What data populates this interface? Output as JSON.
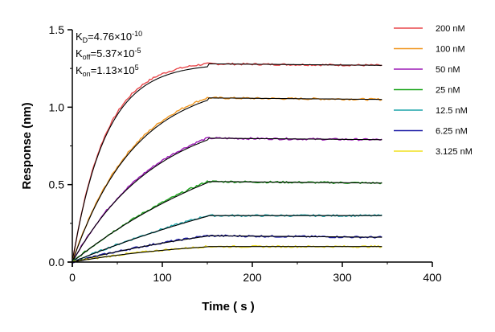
{
  "chart_data": {
    "type": "line",
    "xlabel": "Time ( s )",
    "ylabel": "Response (nm)",
    "xlim": [
      0,
      400
    ],
    "ylim": [
      0,
      1.5
    ],
    "x_ticks": [
      "0",
      "100",
      "200",
      "300",
      "400"
    ],
    "y_ticks": [
      "0.0",
      "0.5",
      "1.0",
      "1.5"
    ],
    "association_end_s": 150,
    "end_time_s": 345,
    "kinetics": {
      "KD": {
        "label": "K",
        "sub": "D",
        "value": "=4.76×10",
        "exp": "-10"
      },
      "Koff": {
        "label": "K",
        "sub": "off",
        "value": "=5.37×10",
        "exp": "-5"
      },
      "Kon": {
        "label": "K",
        "sub": "on",
        "value": "=1.13×10",
        "exp": "5"
      }
    },
    "series": [
      {
        "name": "200 nM",
        "color": "#e8474a",
        "plateau": 1.28,
        "end": 1.27,
        "tau": 37
      },
      {
        "name": "100 nM",
        "color": "#f0961e",
        "plateau": 1.06,
        "end": 1.05,
        "tau": 70
      },
      {
        "name": "50 nM",
        "color": "#9b19b5",
        "plateau": 0.8,
        "end": 0.79,
        "tau": 95
      },
      {
        "name": "25 nM",
        "color": "#1aa51a",
        "plateau": 0.52,
        "end": 0.51,
        "tau": 220
      },
      {
        "name": "12.5 nM",
        "color": "#1aa3a8",
        "plateau": 0.3,
        "end": 0.3,
        "tau": 380
      },
      {
        "name": "6.25 nM",
        "color": "#1a1aa5",
        "plateau": 0.17,
        "end": 0.16,
        "tau": 250
      },
      {
        "name": "3.125 nM",
        "color": "#f0e01e",
        "plateau": 0.1,
        "end": 0.1,
        "tau": 150
      }
    ],
    "fit_color": "#000000",
    "legend_placement": "right",
    "grid": false
  }
}
